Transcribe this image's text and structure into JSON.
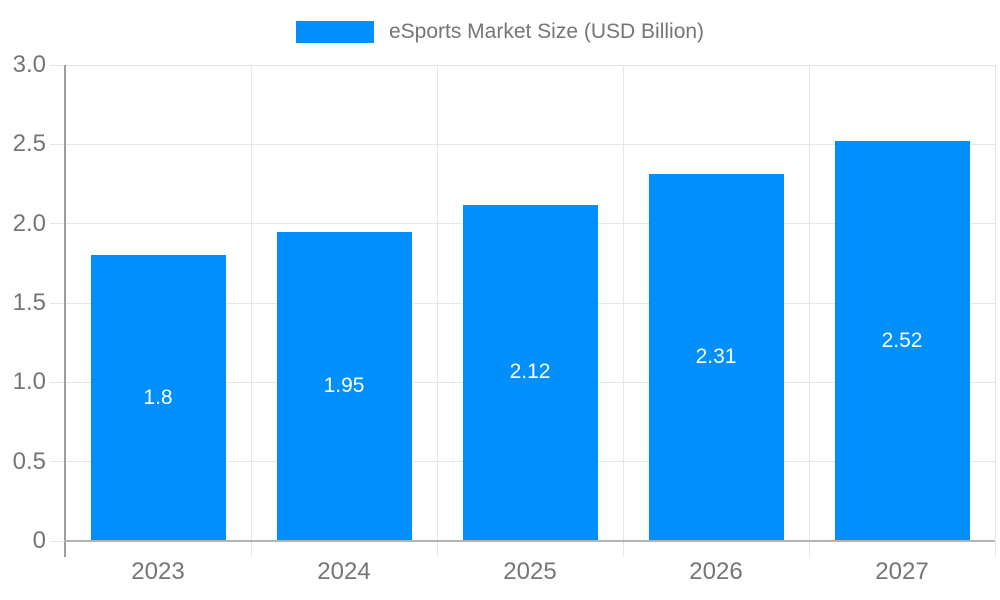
{
  "chart_data": {
    "type": "bar",
    "title": "eSports Market Size (USD Billion)",
    "legend": {
      "label": "eSports Market Size (USD Billion)",
      "position": "top"
    },
    "categories": [
      "2023",
      "2024",
      "2025",
      "2026",
      "2027"
    ],
    "series": [
      {
        "name": "eSports Market Size (USD Billion)",
        "values": [
          1.8,
          1.95,
          2.12,
          2.31,
          2.52
        ],
        "color": "#008FFB"
      }
    ],
    "value_labels": [
      "1.8",
      "1.95",
      "2.12",
      "2.31",
      "2.52"
    ],
    "xlabel": "",
    "ylabel": "",
    "ylim": [
      0,
      3.0
    ],
    "yticks": [
      0,
      0.5,
      1.0,
      1.5,
      2.0,
      2.5,
      3.0
    ],
    "ytick_labels": [
      "0",
      "0.5",
      "1.0",
      "1.5",
      "2.0",
      "2.5",
      "3.0"
    ],
    "grid": true
  },
  "colors": {
    "bar": "#008FFB",
    "gridline": "#E6E6E6",
    "y_axis_line": "#9E9E9E",
    "x_axis_line": "#B3B3B3",
    "tick_label": "#757575",
    "legend_text": "#757575",
    "value_label": "#FFFFFF",
    "background": "#FFFFFF"
  }
}
